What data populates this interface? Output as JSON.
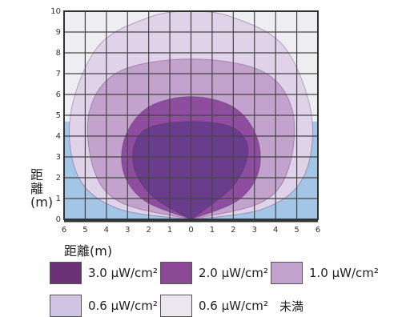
{
  "chart_data": {
    "type": "contour",
    "x_ticks": [
      "6",
      "5",
      "4",
      "3",
      "2",
      "1",
      "0",
      "1",
      "2",
      "3",
      "4",
      "5",
      "6"
    ],
    "y_ticks": [
      "0",
      "1",
      "2",
      "3",
      "4",
      "5",
      "6",
      "7",
      "8",
      "9",
      "10"
    ],
    "xlim": [
      -6,
      6
    ],
    "ylim": [
      0,
      10
    ],
    "xlabel": "距離(m)",
    "ylabel": "距離(m)",
    "grid": true,
    "series": [
      {
        "name": "3.0 μW/cm²",
        "color": "#6a3d8c",
        "boundary": [
          [
            0,
            0
          ],
          [
            -1.7,
            1.0
          ],
          [
            -2.6,
            2.2
          ],
          [
            -2.7,
            3.5
          ],
          [
            -2.0,
            4.4
          ],
          [
            0,
            4.7
          ],
          [
            2.0,
            4.4
          ],
          [
            2.7,
            3.3
          ],
          [
            2.0,
            1.6
          ],
          [
            0,
            0
          ]
        ]
      },
      {
        "name": "2.0 μW/cm²",
        "color": "#8e4d9e",
        "boundary": [
          [
            0,
            0
          ],
          [
            -2.2,
            0.9
          ],
          [
            -3.2,
            2.3
          ],
          [
            -3.1,
            4.0
          ],
          [
            -2.0,
            5.4
          ],
          [
            0,
            5.9
          ],
          [
            2.0,
            5.4
          ],
          [
            3.1,
            4.0
          ],
          [
            3.2,
            2.3
          ],
          [
            2.2,
            0.9
          ],
          [
            0,
            0
          ]
        ]
      },
      {
        "name": "1.0 μW/cm²",
        "color": "#c3a3cd",
        "boundary": [
          [
            0,
            0
          ],
          [
            -3.3,
            0.8
          ],
          [
            -4.6,
            2.4
          ],
          [
            -4.8,
            5.2
          ],
          [
            -3.4,
            7.1
          ],
          [
            0,
            7.7
          ],
          [
            3.4,
            7.1
          ],
          [
            4.8,
            5.2
          ],
          [
            4.6,
            2.4
          ],
          [
            3.3,
            0.8
          ],
          [
            0,
            0
          ]
        ]
      },
      {
        "name": "0.6 μW/cm²",
        "color": "#e0d2e8",
        "boundary": [
          [
            0,
            0
          ],
          [
            -3.4,
            0.5
          ],
          [
            -5.3,
            2.0
          ],
          [
            -5.7,
            5.0
          ],
          [
            -4.4,
            8.3
          ],
          [
            -2.0,
            9.7
          ],
          [
            0,
            10
          ],
          [
            2.0,
            9.7
          ],
          [
            4.4,
            8.3
          ],
          [
            5.7,
            5.0
          ],
          [
            5.3,
            2.0
          ],
          [
            3.4,
            0.5
          ],
          [
            0,
            0
          ]
        ]
      },
      {
        "name": "0.6 μW/cm²",
        "extra": "未満",
        "color": "#a3c5e6"
      }
    ],
    "plot_background": "#eeeef2"
  }
}
